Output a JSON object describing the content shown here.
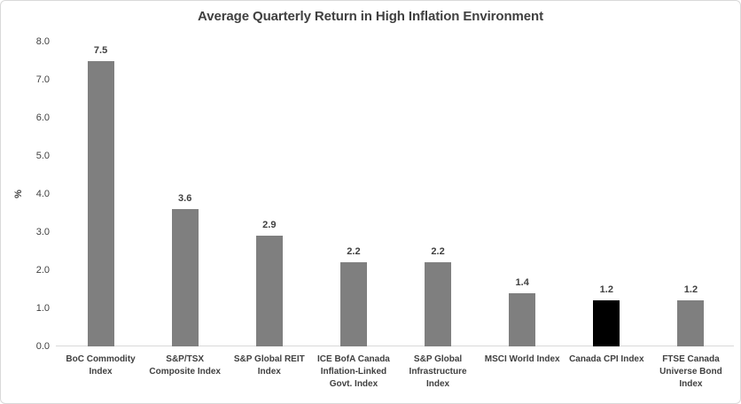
{
  "chart_data": {
    "type": "bar",
    "title": "Average Quarterly Return in High Inflation Environment",
    "xlabel": "",
    "ylabel": "%",
    "ylim": [
      0,
      8
    ],
    "ytick_interval": 1.0,
    "ytick_labels": [
      "0.0",
      "1.0",
      "2.0",
      "3.0",
      "4.0",
      "5.0",
      "6.0",
      "7.0",
      "8.0"
    ],
    "gridlines": false,
    "legend": "none",
    "categories": [
      "BoC Commodity Index",
      "S&P/TSX Composite Index",
      "S&P Global REIT Index",
      "ICE BofA Canada Inflation-Linked Govt. Index",
      "S&P Global Infrastructure Index",
      "MSCI World Index",
      "Canada CPI Index",
      "FTSE Canada Universe Bond Index"
    ],
    "category_label_lines": [
      [
        "BoC Commodity",
        "Index"
      ],
      [
        "S&P/TSX",
        "Composite Index"
      ],
      [
        "S&P Global REIT",
        "Index"
      ],
      [
        "ICE BofA Canada",
        "Inflation-Linked",
        "Govt. Index"
      ],
      [
        "S&P Global",
        "Infrastructure",
        "Index"
      ],
      [
        "MSCI World Index"
      ],
      [
        "Canada CPI Index"
      ],
      [
        "FTSE Canada",
        "Universe Bond",
        "Index"
      ]
    ],
    "values": [
      7.5,
      3.6,
      2.9,
      2.2,
      2.2,
      1.4,
      1.2,
      1.2
    ],
    "data_labels": [
      "7.5",
      "3.6",
      "2.9",
      "2.2",
      "2.2",
      "1.4",
      "1.2",
      "1.2"
    ],
    "highlighted_index": 6,
    "colors": {
      "bar": "#7f7f7f",
      "highlight_bar": "#000000",
      "text": "#404040",
      "axis_line": "#d9d9d9",
      "border": "#d9d9d9",
      "background": "#ffffff"
    }
  }
}
